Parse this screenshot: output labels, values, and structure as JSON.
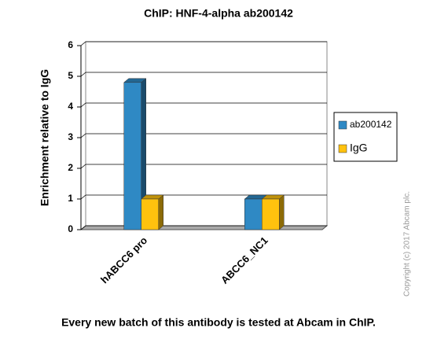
{
  "chart_data": {
    "type": "bar3d",
    "title": "ChIP:  HNF-4-alpha  ab200142",
    "ylabel": "Enrichment relative to IgG",
    "categories": [
      "hABCC6 pro",
      "ABCC6_NC1"
    ],
    "series": [
      {
        "name": "ab200142",
        "color": "#2f89c4",
        "values": [
          4.8,
          1.0
        ]
      },
      {
        "name": "IgG",
        "color": "#ffc20e",
        "values": [
          1.0,
          1.0
        ]
      }
    ],
    "ylim": [
      0,
      6
    ],
    "yticks": [
      0,
      1,
      2,
      3,
      4,
      5,
      6
    ],
    "grid": true,
    "legend": "right",
    "copyright": "Copyright (c) 2017 Abcam plc.",
    "footer": "Every new batch of this antibody is tested at Abcam in ChIP."
  }
}
